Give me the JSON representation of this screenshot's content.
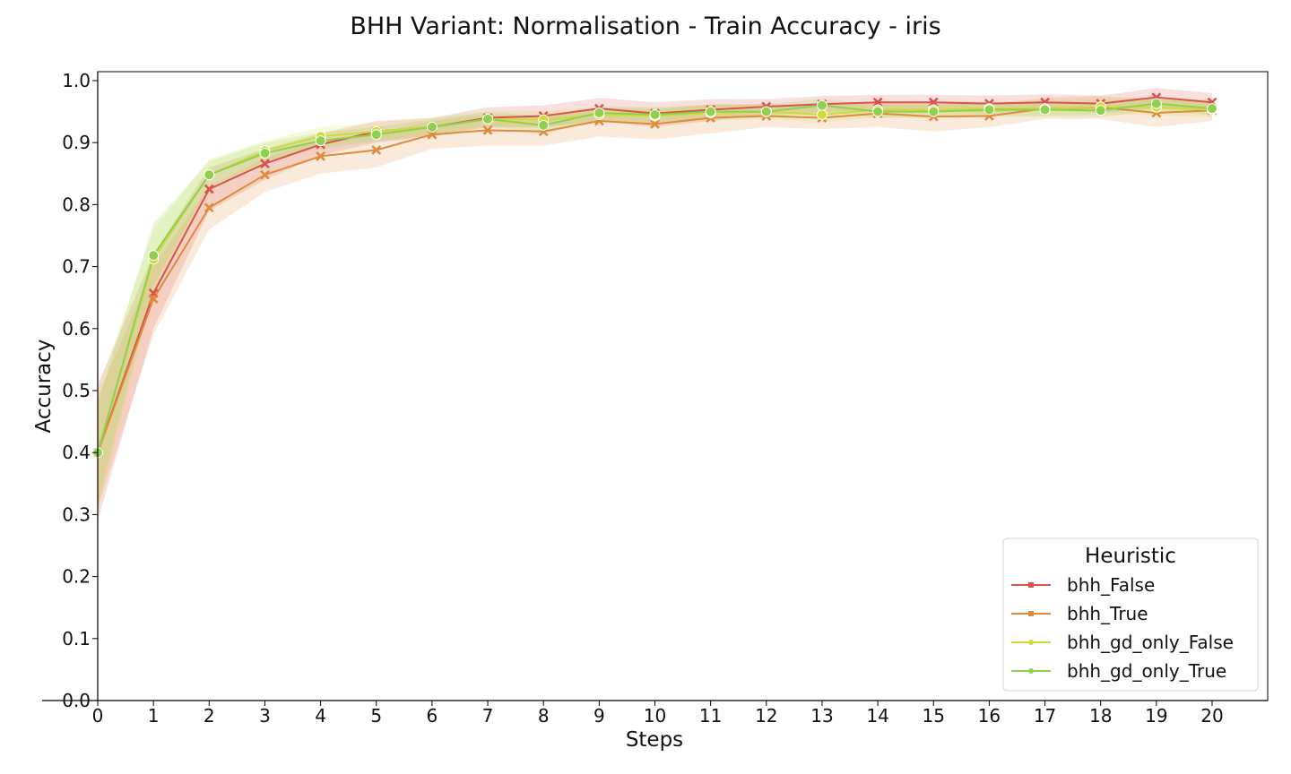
{
  "chart_data": {
    "type": "line",
    "title": "BHH Variant: Normalisation - Train Accuracy - iris",
    "xlabel": "Steps",
    "ylabel": "Accuracy",
    "xlim": [
      0,
      20
    ],
    "ylim": [
      0.0,
      1.0
    ],
    "x_ticks": [
      "0",
      "1",
      "2",
      "3",
      "4",
      "5",
      "6",
      "7",
      "8",
      "9",
      "10",
      "11",
      "12",
      "13",
      "14",
      "15",
      "16",
      "17",
      "18",
      "19",
      "20"
    ],
    "y_ticks": [
      "0.0",
      "0.1",
      "0.2",
      "0.3",
      "0.4",
      "0.5",
      "0.6",
      "0.7",
      "0.8",
      "0.9",
      "1.0"
    ],
    "grid": false,
    "legend": {
      "title": "Heuristic",
      "placement": "lower-right"
    },
    "x": [
      0,
      1,
      2,
      3,
      4,
      5,
      6,
      7,
      8,
      9,
      10,
      11,
      12,
      13,
      14,
      15,
      16,
      17,
      18,
      19,
      20
    ],
    "series": [
      {
        "name": "bhh_False",
        "color": "#d9534f",
        "marker": "x",
        "values": [
          0.4,
          0.657,
          0.825,
          0.866,
          0.897,
          0.918,
          0.925,
          0.94,
          0.943,
          0.955,
          0.947,
          0.953,
          0.958,
          0.962,
          0.965,
          0.965,
          0.963,
          0.965,
          0.963,
          0.973,
          0.965
        ],
        "lower": [
          0.29,
          0.6,
          0.79,
          0.84,
          0.88,
          0.9,
          0.91,
          0.925,
          0.925,
          0.935,
          0.925,
          0.935,
          0.945,
          0.948,
          0.952,
          0.95,
          0.948,
          0.953,
          0.948,
          0.955,
          0.95
        ],
        "upper": [
          0.51,
          0.72,
          0.86,
          0.89,
          0.915,
          0.935,
          0.94,
          0.957,
          0.96,
          0.972,
          0.965,
          0.97,
          0.97,
          0.975,
          0.977,
          0.977,
          0.976,
          0.978,
          0.976,
          0.988,
          0.98
        ]
      },
      {
        "name": "bhh_True",
        "color": "#e08a3c",
        "marker": "x",
        "values": [
          0.4,
          0.648,
          0.795,
          0.848,
          0.878,
          0.888,
          0.913,
          0.92,
          0.918,
          0.935,
          0.93,
          0.94,
          0.943,
          0.94,
          0.947,
          0.942,
          0.943,
          0.955,
          0.957,
          0.948,
          0.952
        ],
        "lower": [
          0.31,
          0.59,
          0.76,
          0.82,
          0.85,
          0.86,
          0.89,
          0.895,
          0.895,
          0.91,
          0.905,
          0.915,
          0.925,
          0.922,
          0.925,
          0.918,
          0.925,
          0.938,
          0.938,
          0.925,
          0.935
        ],
        "upper": [
          0.49,
          0.7,
          0.83,
          0.875,
          0.905,
          0.915,
          0.935,
          0.945,
          0.942,
          0.955,
          0.953,
          0.962,
          0.962,
          0.96,
          0.967,
          0.964,
          0.962,
          0.972,
          0.975,
          0.97,
          0.97
        ]
      },
      {
        "name": "bhh_gd_only_False",
        "color": "#cddc39",
        "marker": "o",
        "values": [
          0.4,
          0.712,
          0.848,
          0.887,
          0.91,
          0.918,
          0.925,
          0.938,
          0.937,
          0.945,
          0.943,
          0.948,
          0.95,
          0.945,
          0.953,
          0.953,
          0.955,
          0.955,
          0.958,
          0.957,
          0.953
        ],
        "lower": [
          0.31,
          0.66,
          0.82,
          0.87,
          0.895,
          0.905,
          0.91,
          0.925,
          0.923,
          0.933,
          0.93,
          0.935,
          0.938,
          0.933,
          0.94,
          0.94,
          0.943,
          0.943,
          0.945,
          0.944,
          0.941
        ],
        "upper": [
          0.5,
          0.76,
          0.873,
          0.903,
          0.925,
          0.932,
          0.94,
          0.951,
          0.951,
          0.957,
          0.956,
          0.961,
          0.962,
          0.957,
          0.966,
          0.966,
          0.967,
          0.967,
          0.971,
          0.97,
          0.965
        ]
      },
      {
        "name": "bhh_gd_only_True",
        "color": "#8fd14f",
        "marker": "o",
        "values": [
          0.4,
          0.718,
          0.848,
          0.883,
          0.903,
          0.913,
          0.925,
          0.938,
          0.928,
          0.948,
          0.945,
          0.95,
          0.95,
          0.96,
          0.95,
          0.95,
          0.953,
          0.953,
          0.952,
          0.963,
          0.955
        ],
        "lower": [
          0.32,
          0.67,
          0.83,
          0.87,
          0.89,
          0.902,
          0.912,
          0.927,
          0.913,
          0.937,
          0.933,
          0.94,
          0.94,
          0.95,
          0.94,
          0.94,
          0.942,
          0.942,
          0.941,
          0.952,
          0.944
        ],
        "upper": [
          0.48,
          0.77,
          0.87,
          0.9,
          0.917,
          0.925,
          0.938,
          0.949,
          0.943,
          0.959,
          0.957,
          0.961,
          0.961,
          0.971,
          0.961,
          0.961,
          0.964,
          0.964,
          0.963,
          0.974,
          0.966
        ]
      }
    ]
  }
}
